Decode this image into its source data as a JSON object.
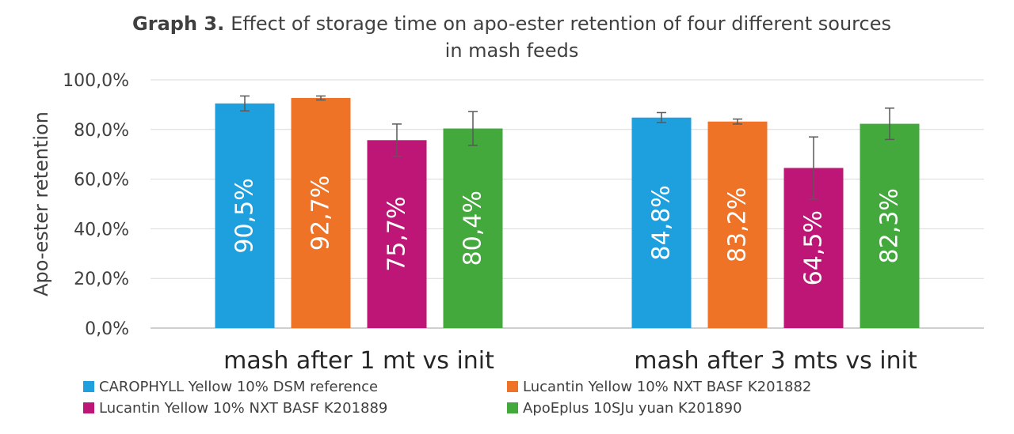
{
  "chart_data": {
    "type": "bar",
    "title_prefix": "Graph 3.",
    "title_line1": "Effect of storage time on apo-ester retention of four different sources",
    "title_line2": "in mash feeds",
    "ylabel": "Apo-ester retention",
    "ylim": [
      0,
      100
    ],
    "yticks": [
      "0,0%",
      "20,0%",
      "40,0%",
      "60,0%",
      "80,0%",
      "100,0%"
    ],
    "ytick_values": [
      0,
      20,
      40,
      60,
      80,
      100
    ],
    "grid": true,
    "legend_position": "bottom",
    "categories": [
      "mash after 1 mt vs init",
      "mash after 3 mts vs init"
    ],
    "series": [
      {
        "name": "CAROPHYLL Yellow 10% DSM reference",
        "color": "#1E9FDE",
        "values": [
          90.5,
          84.8
        ],
        "labels": [
          "90,5%",
          "84,8%"
        ],
        "error": [
          3.0,
          2.0
        ]
      },
      {
        "name": "Lucantin Yellow 10% NXT BASF K201882",
        "color": "#EE7326",
        "values": [
          92.7,
          83.2
        ],
        "labels": [
          "92,7%",
          "83,2%"
        ],
        "error": [
          0.8,
          1.0
        ]
      },
      {
        "name": "Lucantin Yellow 10% NXT BASF K201889",
        "color": "#BE1677",
        "values": [
          75.7,
          64.5
        ],
        "labels": [
          "75,7%",
          "64,5%"
        ],
        "error": [
          6.5,
          12.5
        ]
      },
      {
        "name": "ApoEplus 10SJu yuan K201890",
        "color": "#43A93D",
        "values": [
          80.4,
          82.3
        ],
        "labels": [
          "80,4%",
          "82,3%"
        ],
        "error": [
          6.8,
          6.3
        ]
      }
    ]
  }
}
